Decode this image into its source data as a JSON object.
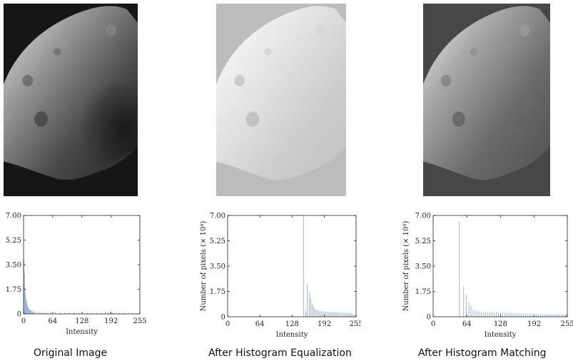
{
  "captions": {
    "original": "Original Image",
    "equalized": "After Histogram Equalization",
    "matched": "After Histogram Matching"
  },
  "colors": {
    "bar": "#9fb6d2",
    "axis": "#222222",
    "dark_sky": "#161616",
    "equalized_background": "#bcbcbc",
    "matched_background": "#474747"
  },
  "chart_data": [
    {
      "type": "bar",
      "panel": "original",
      "xlabel": "Intensity",
      "ylabel": "",
      "xlim": [
        0,
        255
      ],
      "ylim": [
        0,
        7.0
      ],
      "x_ticks": [
        0,
        64,
        128,
        192,
        255
      ],
      "y_ticks": [
        0,
        1.75,
        3.5,
        5.25,
        7.0
      ],
      "x_tick_labels": [
        "0",
        "64",
        "128",
        "192",
        "255"
      ],
      "y_tick_labels": [
        "0",
        "1.75",
        "3.50",
        "5.25",
        "7.00"
      ],
      "points": [
        [
          1,
          3.9
        ],
        [
          2,
          2.9
        ],
        [
          3,
          1.9
        ],
        [
          4,
          1.5
        ],
        [
          5,
          1.2
        ],
        [
          6,
          0.95
        ],
        [
          7,
          0.8
        ],
        [
          8,
          0.65
        ],
        [
          9,
          0.55
        ],
        [
          10,
          0.45
        ],
        [
          11,
          0.4
        ],
        [
          12,
          0.35
        ],
        [
          13,
          0.3
        ],
        [
          14,
          0.27
        ],
        [
          15,
          0.24
        ],
        [
          16,
          0.22
        ],
        [
          18,
          0.2
        ],
        [
          20,
          0.18
        ],
        [
          22,
          0.17
        ],
        [
          25,
          0.16
        ],
        [
          30,
          0.15
        ],
        [
          35,
          0.14
        ],
        [
          40,
          0.13
        ],
        [
          45,
          0.13
        ],
        [
          50,
          0.12
        ],
        [
          60,
          0.12
        ],
        [
          70,
          0.11
        ],
        [
          80,
          0.11
        ],
        [
          90,
          0.11
        ],
        [
          100,
          0.1
        ],
        [
          110,
          0.1
        ],
        [
          120,
          0.1
        ],
        [
          130,
          0.1
        ],
        [
          140,
          0.1
        ],
        [
          150,
          0.09
        ],
        [
          160,
          0.09
        ],
        [
          170,
          0.1
        ],
        [
          180,
          0.11
        ],
        [
          185,
          0.13
        ],
        [
          190,
          0.14
        ],
        [
          195,
          0.12
        ],
        [
          200,
          0.1
        ],
        [
          210,
          0.09
        ],
        [
          220,
          0.08
        ],
        [
          230,
          0.07
        ],
        [
          240,
          0.06
        ],
        [
          250,
          0.04
        ],
        [
          254,
          0.02
        ]
      ]
    },
    {
      "type": "bar",
      "panel": "equalized",
      "xlabel": "Intensity",
      "ylabel": "Number of pixels (× 10⁴)",
      "xlim": [
        0,
        255
      ],
      "ylim": [
        0,
        7.0
      ],
      "x_ticks": [
        0,
        64,
        128,
        192,
        255
      ],
      "y_ticks": [
        0,
        1.75,
        3.5,
        5.25,
        7.0
      ],
      "x_tick_labels": [
        "0",
        "64",
        "128",
        "192",
        "255"
      ],
      "y_tick_labels": [
        "0",
        "1.75",
        "3.50",
        "5.25",
        "7.00"
      ],
      "points": [
        [
          151,
          7.0
        ],
        [
          155,
          0.4
        ],
        [
          158,
          2.3
        ],
        [
          162,
          1.7
        ],
        [
          165,
          1.25
        ],
        [
          168,
          0.9
        ],
        [
          171,
          0.7
        ],
        [
          174,
          0.55
        ],
        [
          177,
          0.48
        ],
        [
          180,
          0.42
        ],
        [
          183,
          0.4
        ],
        [
          186,
          0.38
        ],
        [
          189,
          0.37
        ],
        [
          192,
          0.36
        ],
        [
          195,
          0.35
        ],
        [
          198,
          0.34
        ],
        [
          201,
          0.34
        ],
        [
          204,
          0.33
        ],
        [
          207,
          0.33
        ],
        [
          210,
          0.32
        ],
        [
          213,
          0.32
        ],
        [
          216,
          0.31
        ],
        [
          219,
          0.3
        ],
        [
          222,
          0.3
        ],
        [
          225,
          0.3
        ],
        [
          228,
          0.29
        ],
        [
          231,
          0.28
        ],
        [
          234,
          0.28
        ],
        [
          237,
          0.27
        ],
        [
          240,
          0.26
        ],
        [
          243,
          0.24
        ],
        [
          246,
          0.22
        ],
        [
          249,
          0.2
        ],
        [
          252,
          0.15
        ],
        [
          254,
          0.1
        ]
      ]
    },
    {
      "type": "bar",
      "panel": "matched",
      "xlabel": "Intensity",
      "ylabel": "Number of pixels (× 10⁴)",
      "xlim": [
        0,
        255
      ],
      "ylim": [
        0,
        7.0
      ],
      "x_ticks": [
        0,
        64,
        128,
        192,
        255
      ],
      "y_ticks": [
        0,
        1.75,
        3.5,
        5.25,
        7.0
      ],
      "x_tick_labels": [
        "0",
        "64",
        "128",
        "192",
        "255"
      ],
      "y_tick_labels": [
        "0",
        "1.75",
        "3.50",
        "5.25",
        "7.00"
      ],
      "points": [
        [
          50,
          6.6
        ],
        [
          58,
          2.1
        ],
        [
          63,
          1.55
        ],
        [
          68,
          1.0
        ],
        [
          72,
          0.75
        ],
        [
          76,
          0.5
        ],
        [
          80,
          0.42
        ],
        [
          84,
          0.38
        ],
        [
          88,
          0.36
        ],
        [
          92,
          0.35
        ],
        [
          96,
          0.34
        ],
        [
          100,
          0.33
        ],
        [
          104,
          0.32
        ],
        [
          108,
          0.31
        ],
        [
          112,
          0.31
        ],
        [
          116,
          0.3
        ],
        [
          120,
          0.3
        ],
        [
          124,
          0.29
        ],
        [
          128,
          0.28
        ],
        [
          132,
          0.28
        ],
        [
          136,
          0.27
        ],
        [
          140,
          0.27
        ],
        [
          144,
          0.26
        ],
        [
          148,
          0.26
        ],
        [
          152,
          0.25
        ],
        [
          156,
          0.25
        ],
        [
          160,
          0.24
        ],
        [
          164,
          0.24
        ],
        [
          168,
          0.23
        ],
        [
          172,
          0.23
        ],
        [
          176,
          0.22
        ],
        [
          180,
          0.22
        ],
        [
          184,
          0.22
        ],
        [
          188,
          0.21
        ],
        [
          192,
          0.21
        ],
        [
          196,
          0.21
        ],
        [
          200,
          0.21
        ],
        [
          204,
          0.2
        ],
        [
          208,
          0.2
        ],
        [
          212,
          0.2
        ],
        [
          216,
          0.2
        ],
        [
          220,
          0.2
        ],
        [
          224,
          0.21
        ],
        [
          228,
          0.2
        ],
        [
          232,
          0.2
        ],
        [
          236,
          0.2
        ],
        [
          240,
          0.2
        ],
        [
          244,
          0.19
        ],
        [
          248,
          0.19
        ],
        [
          252,
          0.18
        ],
        [
          254,
          0.15
        ]
      ]
    }
  ]
}
